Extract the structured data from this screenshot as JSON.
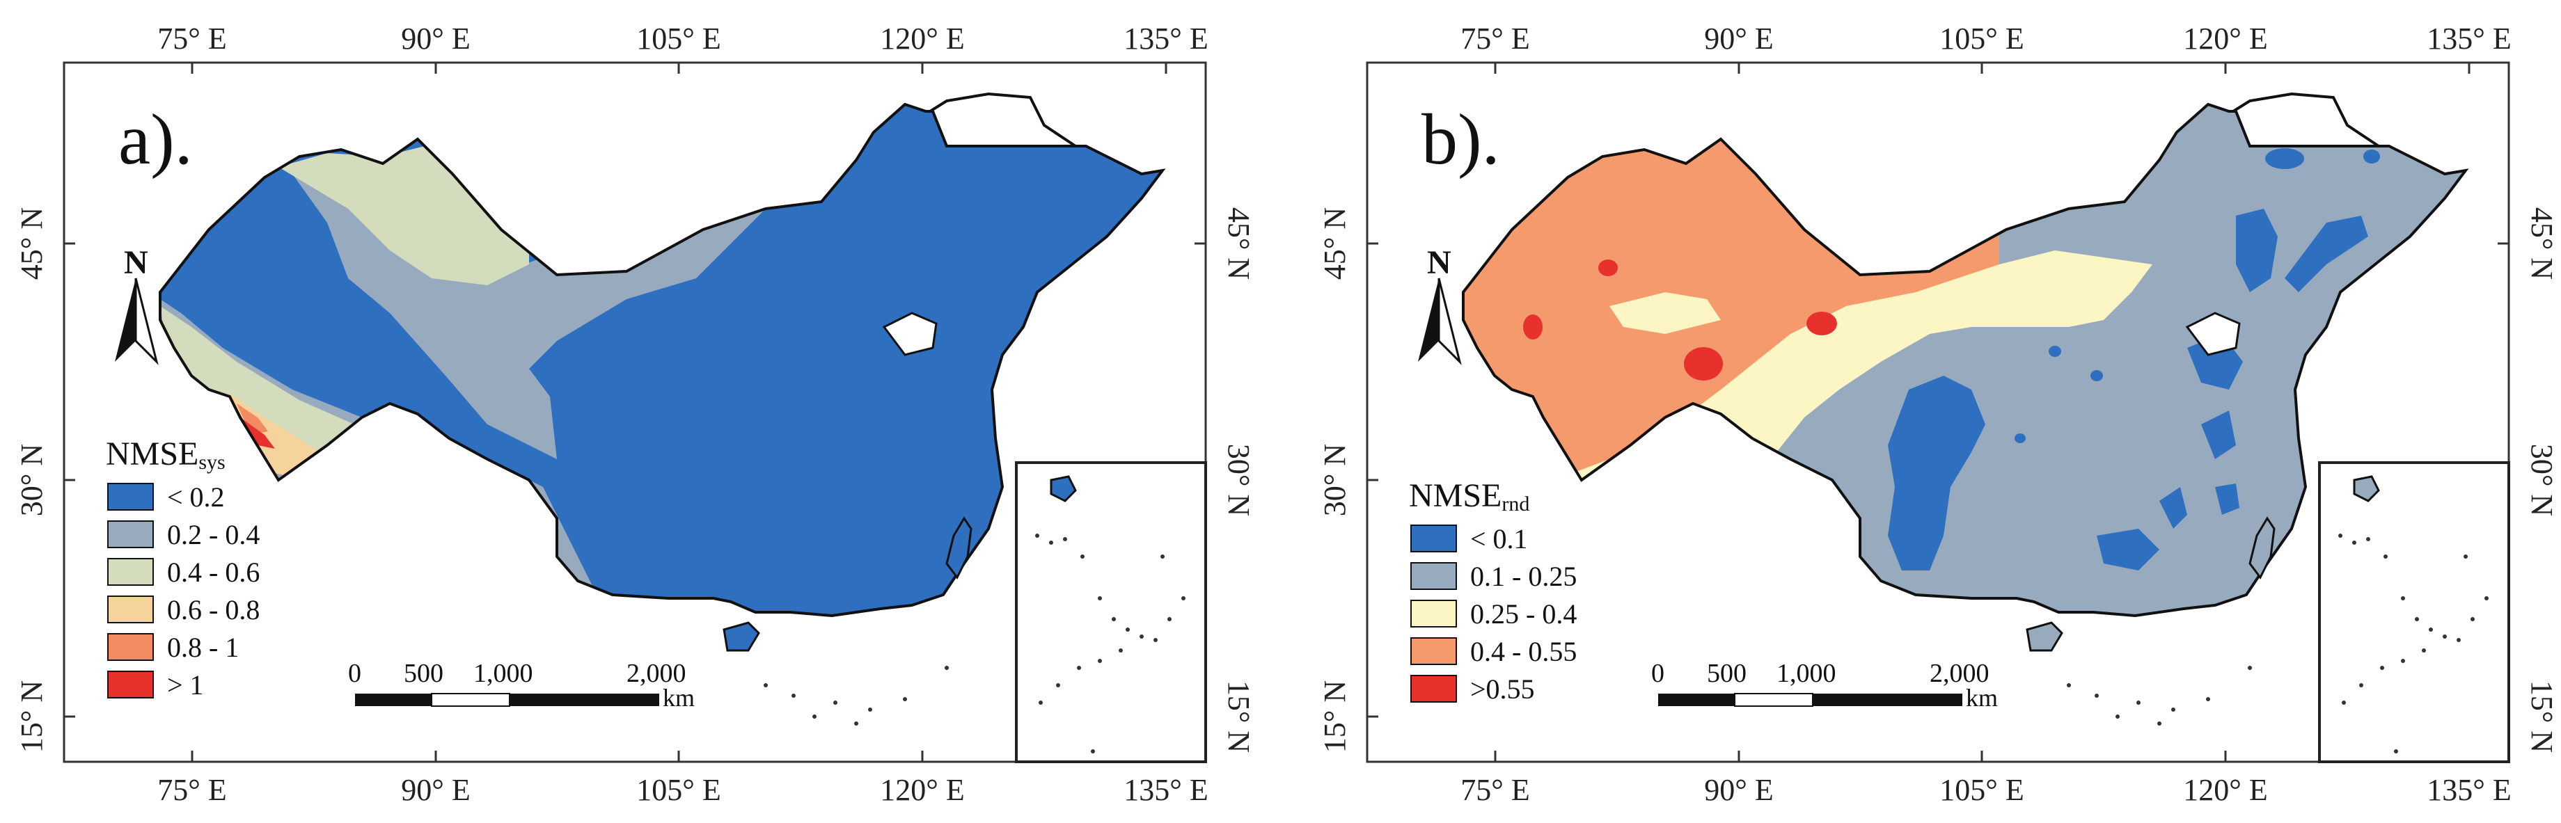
{
  "figure": {
    "panels": [
      {
        "id": "a",
        "label": "a).",
        "legend_title_main": "NMSE",
        "legend_title_sub": "sys",
        "legend": [
          {
            "label": "< 0.2",
            "color": "#2f6fc0"
          },
          {
            "label": "0.2 - 0.4",
            "color": "#98abbe"
          },
          {
            "label": "0.4 - 0.6",
            "color": "#d3dcbc"
          },
          {
            "label": "0.6 - 0.8",
            "color": "#f6d39d"
          },
          {
            "label": "0.8 - 1",
            "color": "#f38b62"
          },
          {
            "label": "> 1",
            "color": "#e8302c"
          }
        ],
        "lon_ticks": [
          "75° E",
          "90° E",
          "105° E",
          "120° E",
          "135° E"
        ],
        "lat_ticks": [
          "45° N",
          "30° N",
          "15° N"
        ],
        "north_label": "N",
        "scale_numbers": [
          "0",
          "500",
          "1,000",
          "2,000"
        ],
        "scale_unit": "km"
      },
      {
        "id": "b",
        "label": "b).",
        "legend_title_main": "NMSE",
        "legend_title_sub": "rnd",
        "legend": [
          {
            "label": "< 0.1",
            "color": "#2f6fc0"
          },
          {
            "label": "0.1 - 0.25",
            "color": "#98abbe"
          },
          {
            "label": "0.25 - 0.4",
            "color": "#fbf6c4"
          },
          {
            "label": "0.4 - 0.55",
            "color": "#f59a6c"
          },
          {
            "label": ">0.55",
            "color": "#e8302c"
          }
        ],
        "lon_ticks": [
          "75° E",
          "90° E",
          "105° E",
          "120° E",
          "135° E"
        ],
        "lat_ticks": [
          "45° N",
          "30° N",
          "15° N"
        ],
        "north_label": "N",
        "scale_numbers": [
          "0",
          "500",
          "1,000",
          "2,000"
        ],
        "scale_unit": "km"
      }
    ]
  }
}
